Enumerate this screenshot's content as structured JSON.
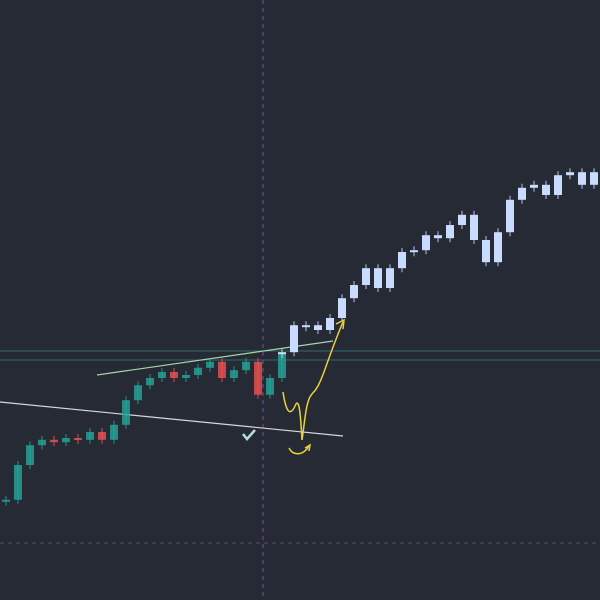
{
  "chart_data": {
    "type": "candles",
    "ylim": [
      0,
      100
    ],
    "up_color": "#26a69a",
    "down_color": "#ef5350",
    "series": [
      {
        "color": "#26a69a",
        "values": [
          16.7,
          22.5,
          25.8,
          26.7,
          26.3,
          27,
          26.7,
          28,
          26.7,
          29.2,
          33.3,
          35.8,
          37,
          38,
          37,
          37.5,
          38.7,
          39.7,
          37,
          38.3,
          39.7,
          34.2,
          37,
          41.3,
          null,
          null,
          null,
          null,
          null,
          null,
          null,
          null,
          null,
          null,
          null,
          null,
          null,
          null,
          null,
          null,
          null,
          null,
          null,
          null,
          null,
          null,
          null,
          null,
          null,
          null
        ]
      },
      {
        "color": "#c9dcff",
        "values": [
          null,
          null,
          null,
          null,
          null,
          null,
          null,
          null,
          null,
          null,
          null,
          null,
          null,
          null,
          null,
          null,
          null,
          null,
          null,
          null,
          null,
          null,
          null,
          41.3,
          45.8,
          45.8,
          45,
          47,
          50.3,
          52.5,
          55.3,
          52,
          55.3,
          58,
          58.3,
          60.8,
          60.3,
          62.5,
          64.2,
          60,
          56.3,
          61.3,
          66.7,
          68.7,
          69.2,
          67.5,
          70.8,
          71.3,
          69.2,
          71.3
        ]
      }
    ]
  }
}
